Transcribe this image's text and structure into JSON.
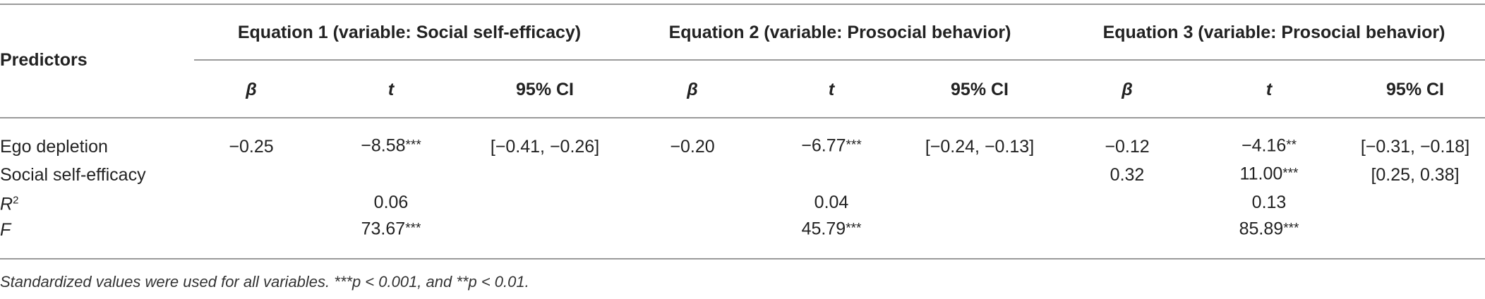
{
  "table": {
    "predictors_header": "Predictors",
    "groups": [
      {
        "title": "Equation 1 (variable: Social self-efficacy)",
        "stats": [
          "β",
          "t",
          "95% CI"
        ]
      },
      {
        "title": "Equation 2 (variable: Prosocial behavior)",
        "stats": [
          "β",
          "t",
          "95% CI"
        ]
      },
      {
        "title": "Equation 3 (variable: Prosocial behavior)",
        "stats": [
          "β",
          "t",
          "95% CI"
        ]
      }
    ],
    "rows": [
      {
        "label": "Ego depletion",
        "cells": [
          {
            "text": "−0.25"
          },
          {
            "text": "−8.58",
            "sig": "***"
          },
          {
            "text": "[−0.41, −0.26]"
          },
          {
            "text": "−0.20"
          },
          {
            "text": "−6.77",
            "sig": "***"
          },
          {
            "text": "[−0.24, −0.13]"
          },
          {
            "text": "−0.12"
          },
          {
            "text": "−4.16",
            "sig": "**"
          },
          {
            "text": "[−0.31, −0.18]"
          }
        ]
      },
      {
        "label": "Social self-efficacy",
        "cells": [
          null,
          null,
          null,
          null,
          null,
          null,
          {
            "text": "0.32"
          },
          {
            "text": "11.00",
            "sig": "***"
          },
          {
            "text": "[0.25, 0.38]"
          }
        ]
      },
      {
        "label": {
          "text": "R",
          "sup": "2"
        },
        "cells": [
          null,
          {
            "text": "0.06"
          },
          null,
          null,
          {
            "text": "0.04"
          },
          null,
          null,
          {
            "text": "0.13"
          },
          null
        ]
      },
      {
        "label": {
          "text": "F"
        },
        "cells": [
          null,
          {
            "text": "73.67",
            "sig": "***"
          },
          null,
          null,
          {
            "text": "45.79",
            "sig": "***"
          },
          null,
          null,
          {
            "text": "85.89",
            "sig": "***"
          },
          null
        ]
      }
    ],
    "footnote": "Standardized values were used for all variables. ***p < 0.001, and **p < 0.01."
  }
}
